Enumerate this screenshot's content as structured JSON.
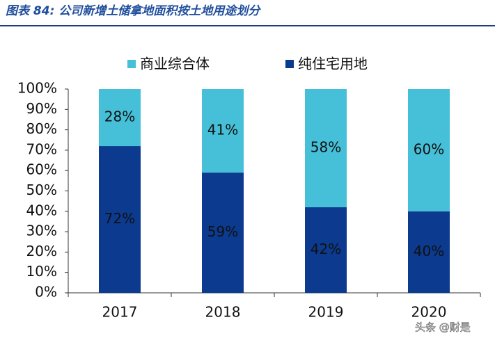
{
  "chart_data": {
    "type": "stacked-bar",
    "title": "图表 84: 公司新增土储拿地面积按土地用途划分",
    "categories": [
      "2017",
      "2018",
      "2019",
      "2020"
    ],
    "series": [
      {
        "name": "商业综合体",
        "color": "#45c0d8",
        "values": [
          28,
          41,
          58,
          60
        ],
        "value_labels": [
          "28%",
          "41%",
          "58%",
          "60%"
        ]
      },
      {
        "name": "纯住宅用地",
        "color": "#0b3a8f",
        "values": [
          72,
          59,
          42,
          40
        ],
        "value_labels": [
          "72%",
          "59%",
          "42%",
          "40%"
        ]
      }
    ],
    "ylim": [
      0,
      100
    ],
    "yticks": [
      {
        "value": 0,
        "label": "0%"
      },
      {
        "value": 10,
        "label": "10%"
      },
      {
        "value": 20,
        "label": "20%"
      },
      {
        "value": 30,
        "label": "30%"
      },
      {
        "value": 40,
        "label": "40%"
      },
      {
        "value": 50,
        "label": "50%"
      },
      {
        "value": 60,
        "label": "60%"
      },
      {
        "value": 70,
        "label": "70%"
      },
      {
        "value": 80,
        "label": "80%"
      },
      {
        "value": 90,
        "label": "90%"
      },
      {
        "value": 100,
        "label": "100%"
      }
    ],
    "legend": "top",
    "watermark": "头条 @财是"
  }
}
